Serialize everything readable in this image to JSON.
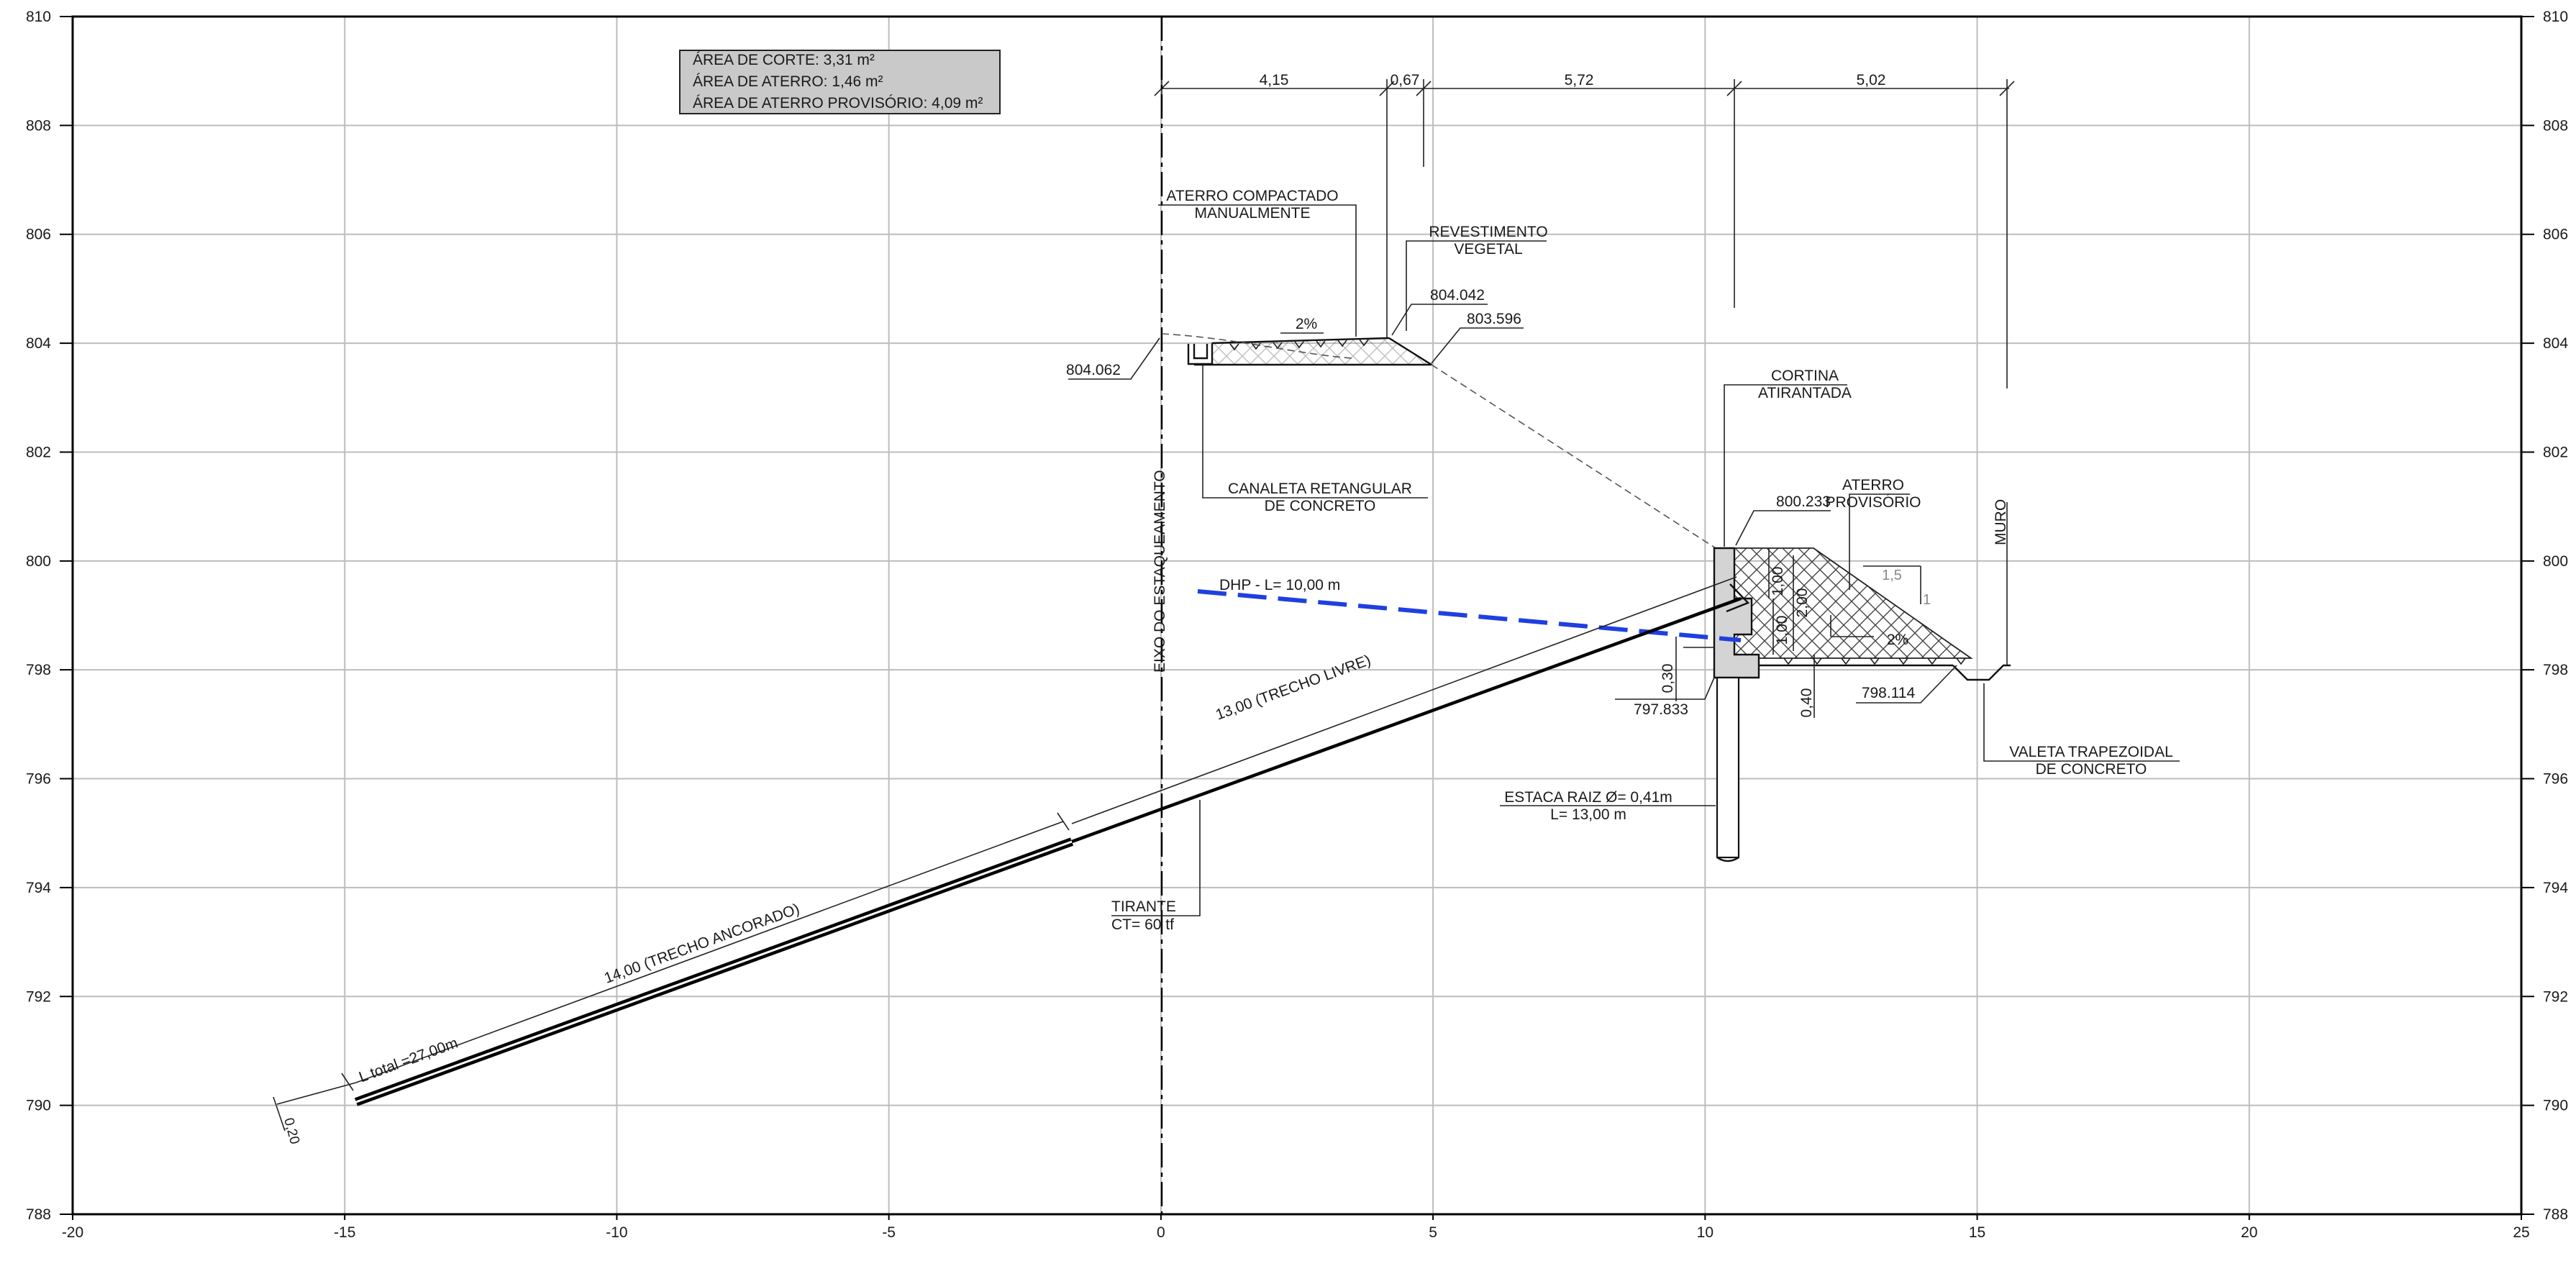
{
  "axes": {
    "x_ticks": [
      -20,
      -15,
      -10,
      -5,
      0,
      5,
      10,
      15,
      20,
      25
    ],
    "y_ticks": [
      788,
      790,
      792,
      794,
      796,
      798,
      800,
      802,
      804,
      806,
      808,
      810
    ],
    "xlim": [
      -20,
      25
    ],
    "ylim": [
      788,
      810
    ],
    "grid": true
  },
  "areas_box": {
    "corte": "ÁREA DE CORTE: 3,31 m²",
    "aterro": "ÁREA DE ATERRO: 1,46 m²",
    "aterro_provisorio": "ÁREA DE ATERRO PROVISÓRIO: 4,09 m²"
  },
  "dimensions": {
    "d1": "4,15",
    "d2": "0,67",
    "d3": "5,72",
    "d4": "5,02",
    "h_1_00_top": "1,00",
    "h_2_00": "2,00",
    "h_1_00_bottom": "1,00",
    "h_0_30": "0,30",
    "h_0_40": "0,40",
    "anchor_dim": "0,20"
  },
  "elevations": {
    "e804062": "804.062",
    "e804042": "804.042",
    "e803596": "803.596",
    "e800233": "800.233",
    "e797833": "797.833",
    "e798114": "798.114"
  },
  "labels": {
    "aterro_compactado_1": "ATERRO COMPACTADO",
    "aterro_compactado_2": "MANUALMENTE",
    "revestimento_1": "REVESTIMENTO",
    "revestimento_2": "VEGETAL",
    "slope_top": "2%",
    "slope_bottom": "2%",
    "canaleta_1": "CANALETA RETANGULAR",
    "canaleta_2": "DE CONCRETO",
    "cortina_1": "CORTINA",
    "cortina_2": "ATIRANTADA",
    "aterro_prov_1": "ATERRO",
    "aterro_prov_2": "PROVISÓRIO",
    "muro": "MURO",
    "eixo": "EIXO DO ESTAQUEAMENTO",
    "dhp": "DHP - L= 10,00 m",
    "ratio_h": "1,5",
    "ratio_v": "1",
    "trecho_livre": "13,00 (TRECHO LIVRE)",
    "trecho_ancorado": "14,00 (TRECHO ANCORADO)",
    "l_total": "L total =27,00m",
    "tirante_1": "TIRANTE",
    "tirante_2": "CT= 60 tf",
    "estaca_1": "ESTACA RAIZ Ø= 0,41m",
    "estaca_2": "L= 13,00 m",
    "valeta_1": "VALETA TRAPEZOIDAL",
    "valeta_2": "DE CONCRETO"
  },
  "colors": {
    "grid": "#bdbdbd",
    "dhp_line": "#1f3fe0",
    "wall_fill": "#d4d4d4",
    "box_fill": "#c9c9c9"
  }
}
